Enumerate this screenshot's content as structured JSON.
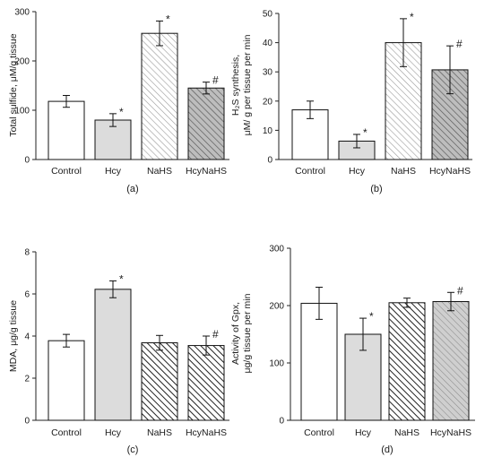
{
  "chart_data": [
    {
      "type": "bar",
      "panel_label": "(a)",
      "categories": [
        "Control",
        "Hcy",
        "NaHS",
        "HcyNaHS"
      ],
      "values": [
        118,
        80,
        256,
        145
      ],
      "errors": [
        12,
        13,
        25,
        12
      ],
      "annotations": [
        "",
        "*",
        "*",
        "#"
      ],
      "ylabel_lines": [
        "Total sulfide, μM/g tissue"
      ],
      "ylim": [
        0,
        300
      ],
      "yticks": [
        0,
        100,
        200,
        300
      ],
      "bar_styles": [
        "white",
        "light-gray",
        "hatch-light",
        "hatch-gray"
      ]
    },
    {
      "type": "bar",
      "panel_label": "(b)",
      "categories": [
        "Control",
        "Hcy",
        "NaHS",
        "HcyNaHS"
      ],
      "values": [
        17,
        6.3,
        40,
        30.7
      ],
      "errors": [
        3,
        2.3,
        8.2,
        8.2
      ],
      "annotations": [
        "",
        "*",
        "*",
        "#"
      ],
      "ylabel_lines": [
        "H₂S synthesis,",
        "μM/ g per tissue per min"
      ],
      "ylim": [
        0,
        50
      ],
      "yticks": [
        0,
        10,
        20,
        30,
        40,
        50
      ],
      "bar_styles": [
        "white",
        "light-gray",
        "hatch-light",
        "hatch-gray"
      ]
    },
    {
      "type": "bar",
      "panel_label": "(c)",
      "categories": [
        "Control",
        "Hcy",
        "NaHS",
        "HcyNaHS"
      ],
      "values": [
        3.78,
        6.22,
        3.68,
        3.55
      ],
      "errors": [
        0.3,
        0.4,
        0.35,
        0.45
      ],
      "annotations": [
        "",
        "*",
        "",
        "#"
      ],
      "ylabel_lines": [
        "MDA, μg/g tissue"
      ],
      "ylim": [
        0,
        8
      ],
      "yticks": [
        0,
        2,
        4,
        6,
        8
      ],
      "bar_styles": [
        "white",
        "light-gray",
        "hatch-dark",
        "hatch-dark"
      ]
    },
    {
      "type": "bar",
      "panel_label": "(d)",
      "categories": [
        "Control",
        "Hcy",
        "NaHS",
        "HcyNaHS"
      ],
      "values": [
        204,
        150,
        205,
        207
      ],
      "errors": [
        28,
        28,
        8,
        16
      ],
      "annotations": [
        "",
        "*",
        "",
        "#"
      ],
      "ylabel_lines": [
        "Activity of Gpx,",
        "μg/g tissue per min"
      ],
      "ylim": [
        0,
        300
      ],
      "yticks": [
        0,
        100,
        200,
        300
      ],
      "bar_styles": [
        "white",
        "light-gray",
        "hatch-dark",
        "hatch-gray-light"
      ]
    }
  ]
}
